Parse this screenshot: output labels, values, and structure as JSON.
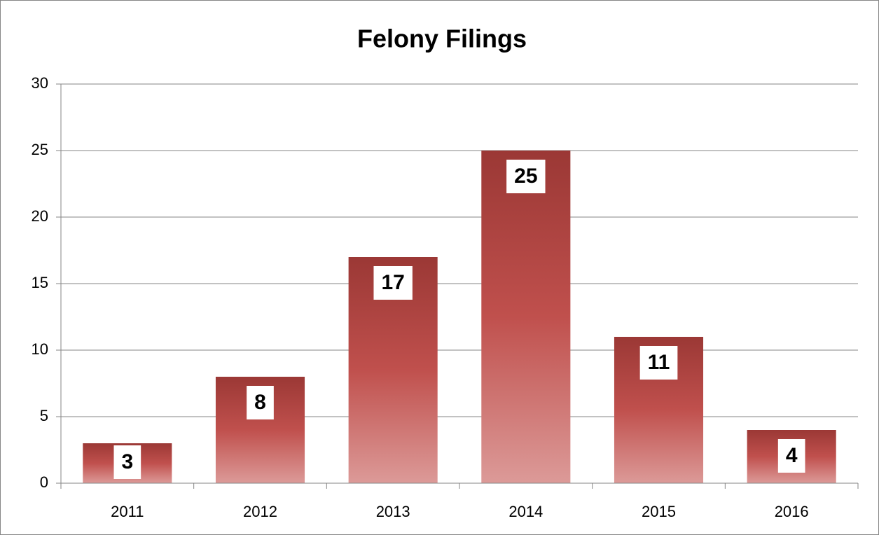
{
  "chart_data": {
    "type": "bar",
    "title": "Felony Filings",
    "categories": [
      "2011",
      "2012",
      "2013",
      "2014",
      "2015",
      "2016"
    ],
    "values": [
      3,
      8,
      17,
      25,
      11,
      4
    ],
    "color": "#c0504d",
    "ylim": [
      0,
      30
    ],
    "yticks": [
      0,
      5,
      10,
      15,
      20,
      25,
      30
    ],
    "grid": true
  }
}
